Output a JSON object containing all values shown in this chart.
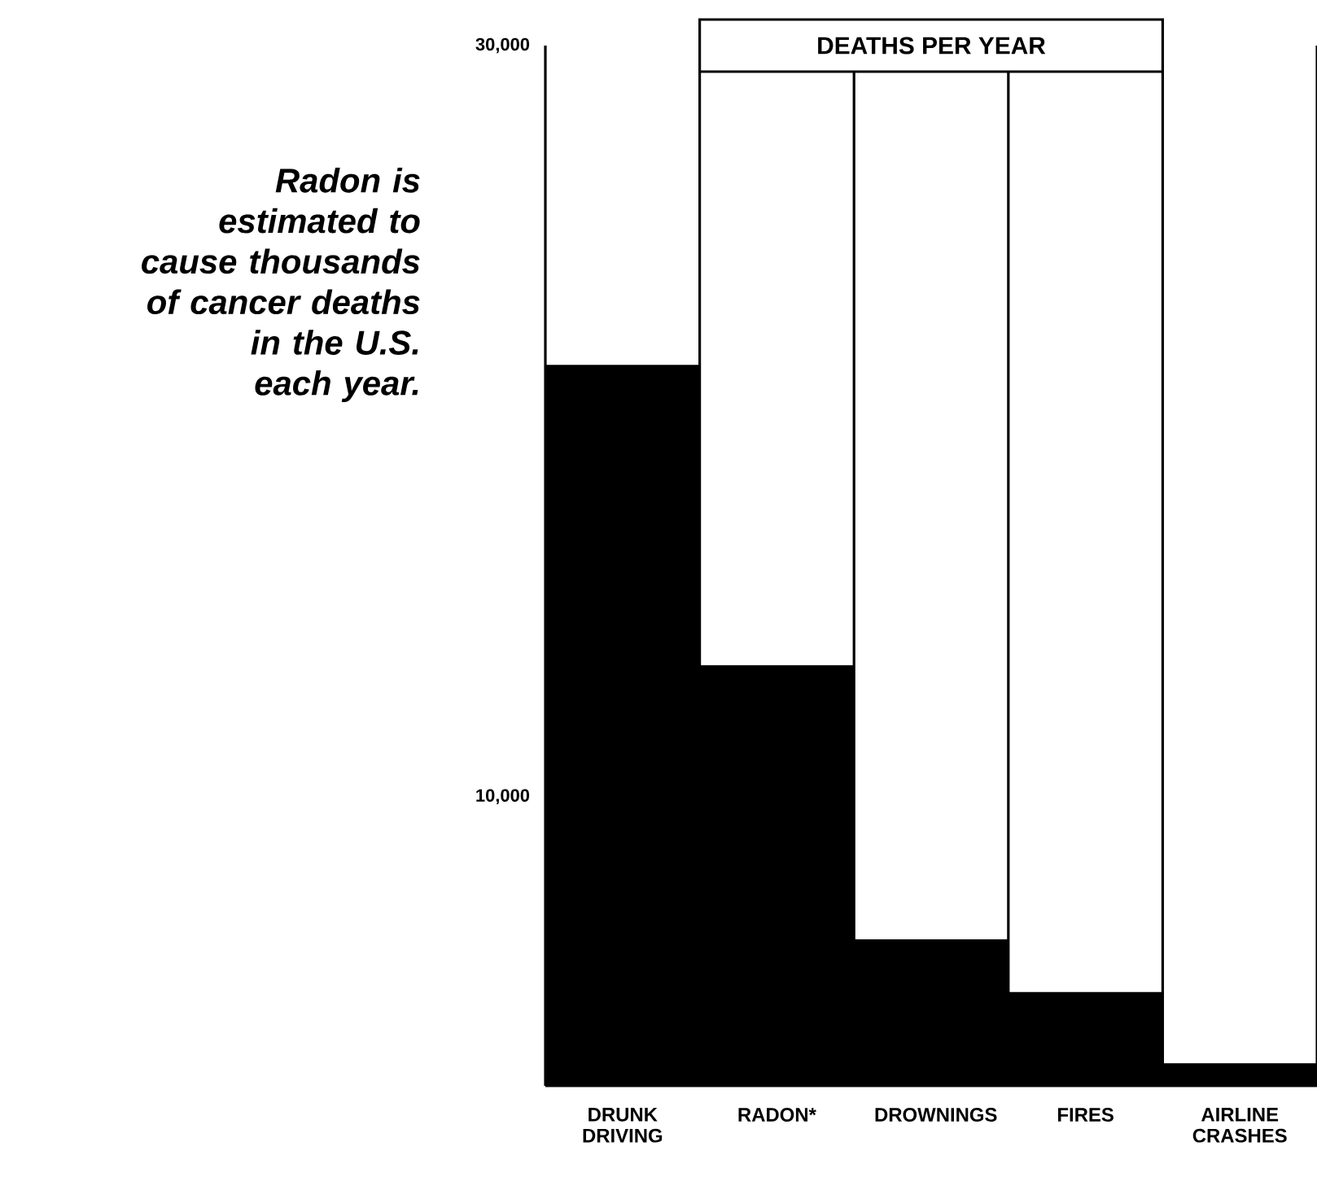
{
  "chart_data": {
    "type": "bar",
    "title": "DEATHS PER YEAR",
    "categories": [
      "DRUNK DRIVING",
      "RADON*",
      "DROWNINGS",
      "FIRES",
      "AIRLINE CRASHES"
    ],
    "values": [
      21500,
      13500,
      6200,
      4800,
      2900
    ],
    "color": "#000000",
    "ylim": [
      2300,
      30000
    ],
    "yticks": [
      {
        "value": 10000,
        "label": "10,000"
      },
      {
        "value": 30000,
        "label": "30,000"
      }
    ],
    "grid": "x",
    "annotations": [
      "Radon is estimated to cause thousands of cancer deaths in the U.S. each year."
    ]
  }
}
